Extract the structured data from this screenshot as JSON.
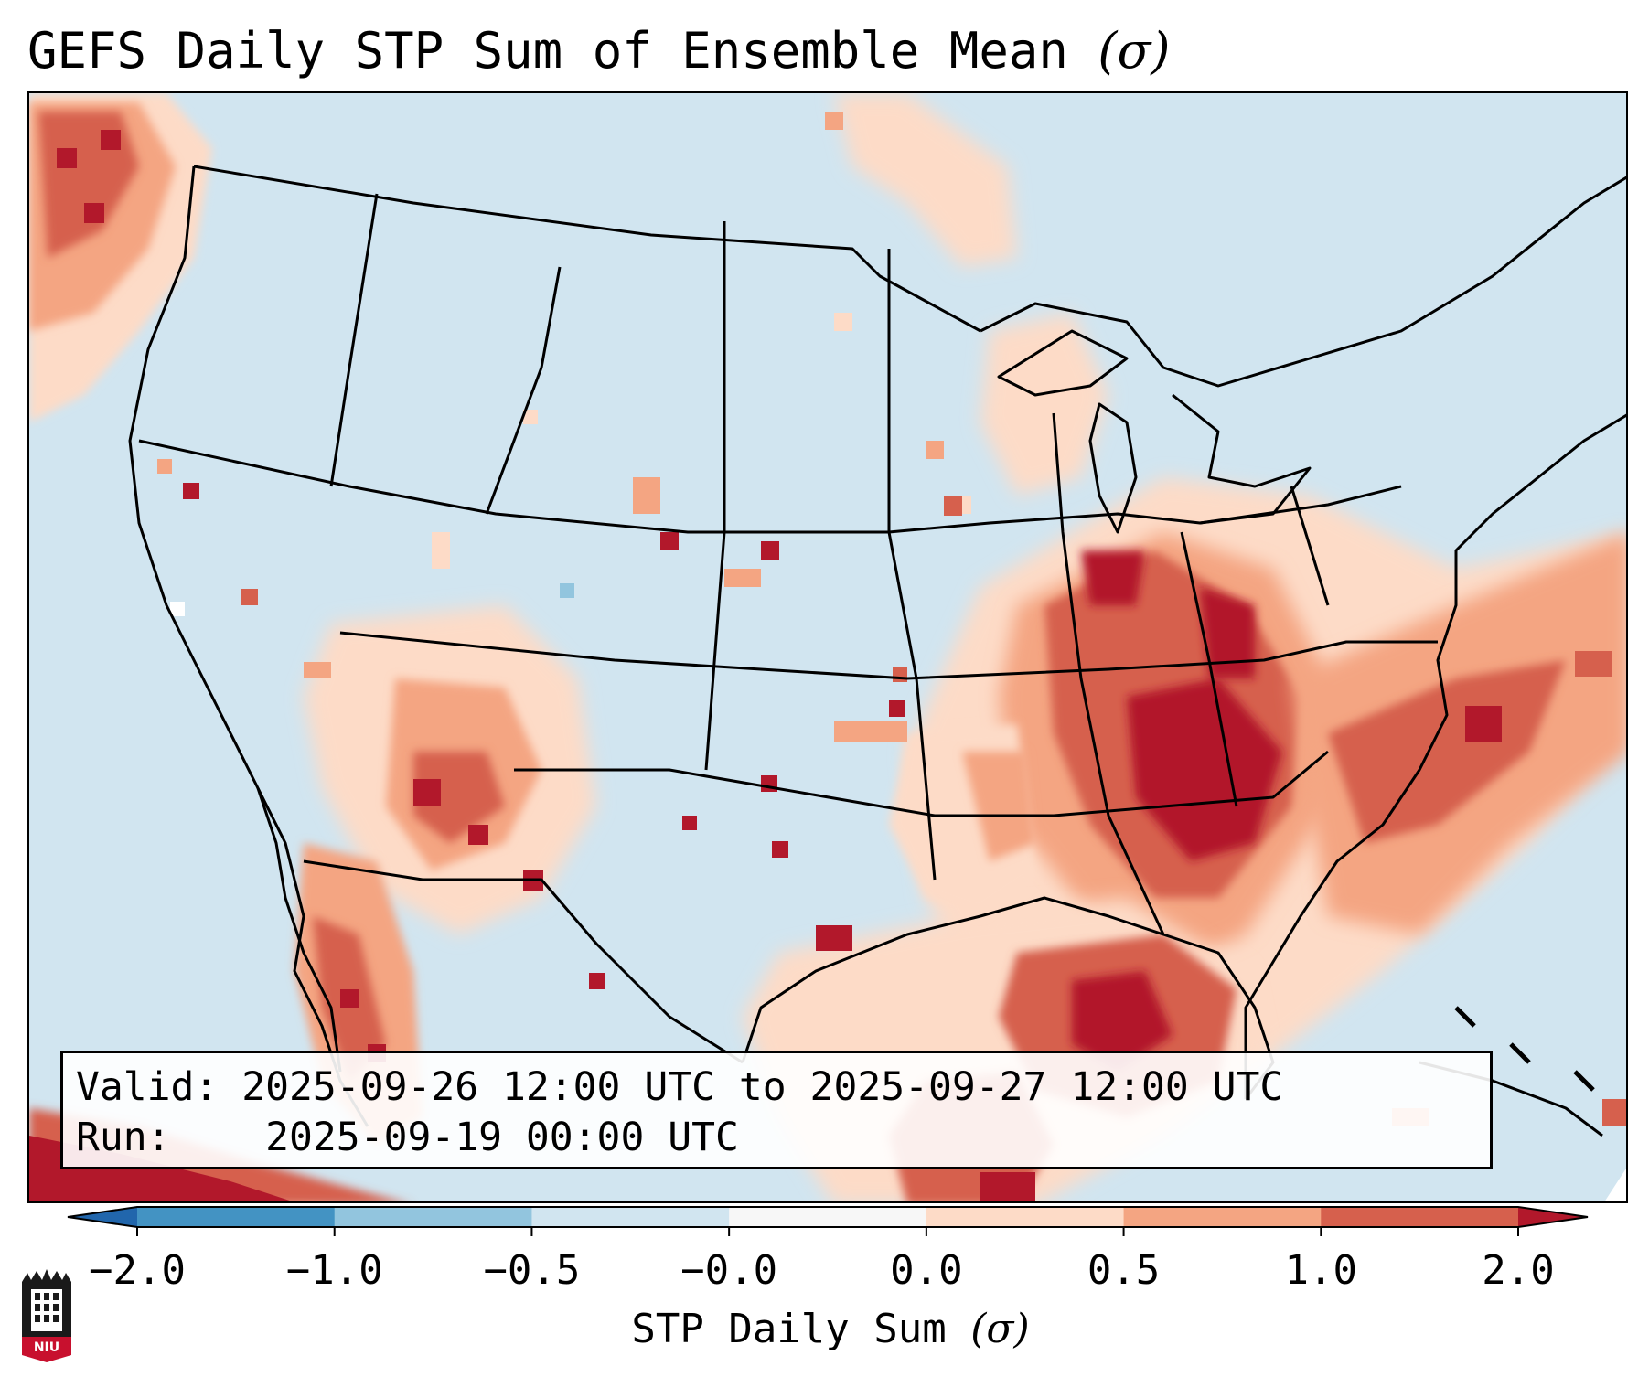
{
  "title": {
    "text": "GEFS Daily STP Sum of Ensemble Mean",
    "unit_symbol": "(σ)"
  },
  "info_box": {
    "valid_label": "Valid:",
    "valid_value": "2025-09-26 12:00 UTC to 2025-09-27 12:00 UTC",
    "run_label": "Run:",
    "run_value": "2025-09-19 00:00 UTC"
  },
  "colorbar": {
    "label_text": "STP Daily Sum",
    "label_symbol": "(σ)",
    "tick_labels": [
      "−2.0",
      "−1.0",
      "−0.5",
      "−0.0",
      "0.0",
      "0.5",
      "1.0",
      "2.0"
    ],
    "bins": [
      {
        "range": "< -2.0",
        "color": "#2166ac"
      },
      {
        "range": "-2.0 to -1.0",
        "color": "#4393c3"
      },
      {
        "range": "-1.0 to -0.5",
        "color": "#92c5de"
      },
      {
        "range": "-0.5 to -0.0",
        "color": "#d1e5f0"
      },
      {
        "range": "-0.0 to 0.0",
        "color": "#f7f7f7"
      },
      {
        "range": "0.0 to 0.5",
        "color": "#fddbc7"
      },
      {
        "range": "0.5 to 1.0",
        "color": "#f4a582"
      },
      {
        "range": "1.0 to 2.0",
        "color": "#d6604d"
      },
      {
        "range": "> 2.0",
        "color": "#b2182b"
      }
    ]
  },
  "map": {
    "background_color": "#d1e5f0",
    "regions": [
      {
        "name": "Pacific NW offshore",
        "category": "1.0 to 2.0"
      },
      {
        "name": "Southern Appalachians / Carolinas / Virginia",
        "category": "1.0 to 2.0"
      },
      {
        "name": "Georgia / South Carolina",
        "category": "> 2.0"
      },
      {
        "name": "Western Atlantic offshore",
        "category": "0.5 to 1.0"
      },
      {
        "name": "Eastern Gulf of Mexico",
        "category": "> 2.0"
      },
      {
        "name": "Western Gulf of Mexico",
        "category": "0.0 to 0.5"
      },
      {
        "name": "Arizona / New Mexico / Sonora",
        "category": "0.5 to 1.0"
      },
      {
        "name": "Mississippi Valley",
        "category": "0.0 to 0.5"
      },
      {
        "name": "Great Lakes / Upper Midwest",
        "category": "0.0 to 0.5"
      },
      {
        "name": "Northern Plains",
        "category": "0.0 to 0.5"
      }
    ]
  },
  "logo": {
    "text": "NIU"
  }
}
